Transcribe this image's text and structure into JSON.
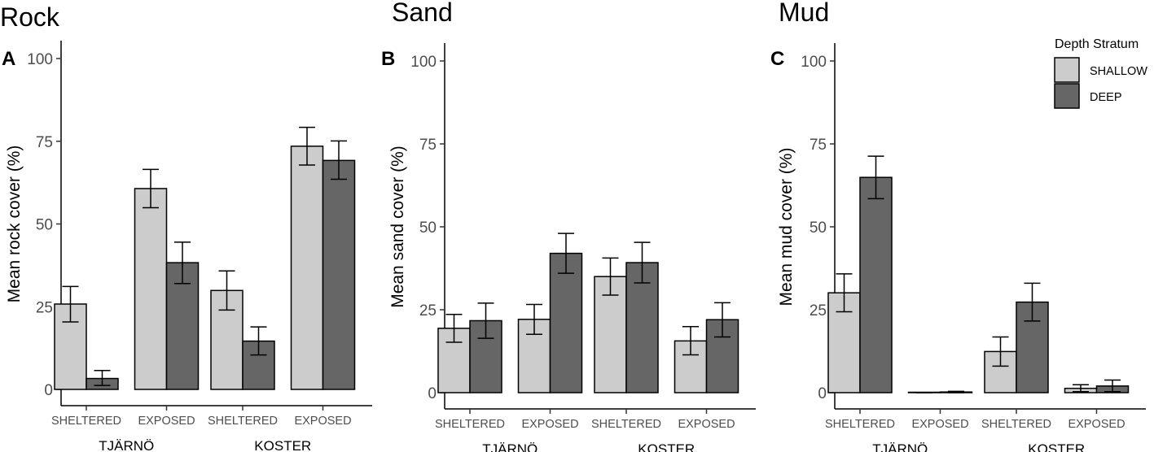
{
  "chart_data": [
    {
      "type": "bar",
      "title": "Rock",
      "panel_label": "A",
      "ylabel": "Mean rock cover (%)",
      "ylim": [
        0,
        100
      ],
      "yticks": [
        0,
        25,
        50,
        75,
        100
      ],
      "groups": [
        {
          "name": "TJÄRNÖ",
          "categories": [
            {
              "label": "SHELTERED",
              "values": [
                {
                  "series": "SHALLOW",
                  "value": 25.8,
                  "lower": 20.4,
                  "upper": 31.1
                },
                {
                  "series": "DEEP",
                  "value": 3.3,
                  "lower": 1.2,
                  "upper": 5.7
                }
              ]
            },
            {
              "label": "EXPOSED",
              "values": [
                {
                  "series": "SHALLOW",
                  "value": 60.7,
                  "lower": 54.9,
                  "upper": 66.5
                },
                {
                  "series": "DEEP",
                  "value": 38.3,
                  "lower": 32.0,
                  "upper": 44.5
                }
              ]
            }
          ]
        },
        {
          "name": "KOSTER",
          "categories": [
            {
              "label": "SHELTERED",
              "values": [
                {
                  "series": "SHALLOW",
                  "value": 29.9,
                  "lower": 24.0,
                  "upper": 35.8
                },
                {
                  "series": "DEEP",
                  "value": 14.6,
                  "lower": 10.4,
                  "upper": 18.9
                }
              ]
            },
            {
              "label": "EXPOSED",
              "values": [
                {
                  "series": "SHALLOW",
                  "value": 73.5,
                  "lower": 67.8,
                  "upper": 79.2
                },
                {
                  "series": "DEEP",
                  "value": 69.2,
                  "lower": 63.5,
                  "upper": 75.1
                }
              ]
            }
          ]
        }
      ]
    },
    {
      "type": "bar",
      "title": "Sand",
      "panel_label": "B",
      "ylabel": "Mean sand cover (%)",
      "ylim": [
        0,
        100
      ],
      "yticks": [
        0,
        25,
        50,
        75,
        100
      ],
      "groups": [
        {
          "name": "TJÄRNÖ",
          "categories": [
            {
              "label": "SHELTERED",
              "values": [
                {
                  "series": "SHALLOW",
                  "value": 19.4,
                  "lower": 15.2,
                  "upper": 23.6
                },
                {
                  "series": "DEEP",
                  "value": 21.7,
                  "lower": 16.4,
                  "upper": 27.0
                }
              ]
            },
            {
              "label": "EXPOSED",
              "values": [
                {
                  "series": "SHALLOW",
                  "value": 22.1,
                  "lower": 17.6,
                  "upper": 26.6
                },
                {
                  "series": "DEEP",
                  "value": 42.0,
                  "lower": 36.0,
                  "upper": 48.0
                }
              ]
            }
          ]
        },
        {
          "name": "KOSTER",
          "categories": [
            {
              "label": "SHELTERED",
              "values": [
                {
                  "series": "SHALLOW",
                  "value": 35.0,
                  "lower": 29.4,
                  "upper": 40.6
                },
                {
                  "series": "DEEP",
                  "value": 39.2,
                  "lower": 33.1,
                  "upper": 45.3
                }
              ]
            },
            {
              "label": "EXPOSED",
              "values": [
                {
                  "series": "SHALLOW",
                  "value": 15.6,
                  "lower": 11.4,
                  "upper": 19.9
                },
                {
                  "series": "DEEP",
                  "value": 22.0,
                  "lower": 16.8,
                  "upper": 27.1
                }
              ]
            }
          ]
        }
      ]
    },
    {
      "type": "bar",
      "title": "Mud",
      "panel_label": "C",
      "ylabel": "Mean mud cover (%)",
      "ylim": [
        0,
        100
      ],
      "yticks": [
        0,
        25,
        50,
        75,
        100
      ],
      "groups": [
        {
          "name": "TJÄRNÖ",
          "categories": [
            {
              "label": "SHELTERED",
              "values": [
                {
                  "series": "SHALLOW",
                  "value": 30.1,
                  "lower": 24.4,
                  "upper": 35.8
                },
                {
                  "series": "DEEP",
                  "value": 64.9,
                  "lower": 58.5,
                  "upper": 71.3
                }
              ]
            },
            {
              "label": "EXPOSED",
              "values": [
                {
                  "series": "SHALLOW",
                  "value": 0.0,
                  "lower": 0.0,
                  "upper": 0.0
                },
                {
                  "series": "DEEP",
                  "value": 0.2,
                  "lower": 0.0,
                  "upper": 0.4
                }
              ]
            }
          ]
        },
        {
          "name": "KOSTER",
          "categories": [
            {
              "label": "SHELTERED",
              "values": [
                {
                  "series": "SHALLOW",
                  "value": 12.4,
                  "lower": 8.0,
                  "upper": 16.8
                },
                {
                  "series": "DEEP",
                  "value": 27.3,
                  "lower": 21.6,
                  "upper": 33.0
                }
              ]
            },
            {
              "label": "EXPOSED",
              "values": [
                {
                  "series": "SHALLOW",
                  "value": 1.3,
                  "lower": 0.3,
                  "upper": 2.4
                },
                {
                  "series": "DEEP",
                  "value": 2.0,
                  "lower": 0.3,
                  "upper": 3.8
                }
              ]
            }
          ]
        }
      ]
    }
  ],
  "legend": {
    "title": "Depth Stratum",
    "position": "top-right",
    "items": [
      {
        "label": "SHALLOW",
        "color": "#cccccc"
      },
      {
        "label": "DEEP",
        "color": "#666666"
      }
    ]
  },
  "colors": {
    "SHALLOW": "#cccccc",
    "DEEP": "#666666",
    "stroke": "#000000"
  }
}
